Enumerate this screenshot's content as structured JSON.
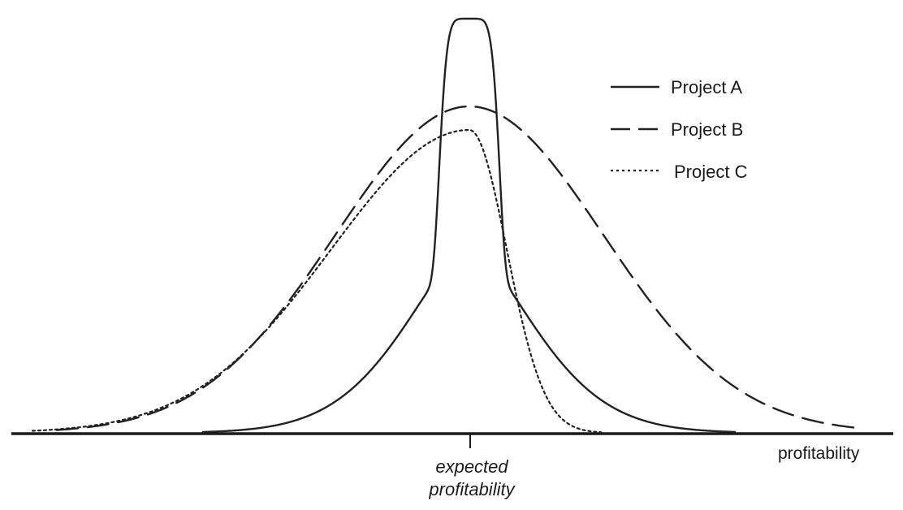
{
  "diagram": {
    "x_axis_label": "profitability",
    "center_label_line1": "expected",
    "center_label_line2": "profitability",
    "legend": [
      {
        "label": "Project A",
        "line_style": "solid"
      },
      {
        "label": "Project B",
        "line_style": "long-dash"
      },
      {
        "label": "Project C",
        "line_style": "dotted"
      }
    ]
  },
  "colors": {
    "background": "#ffffff",
    "ink": "#222222"
  }
}
